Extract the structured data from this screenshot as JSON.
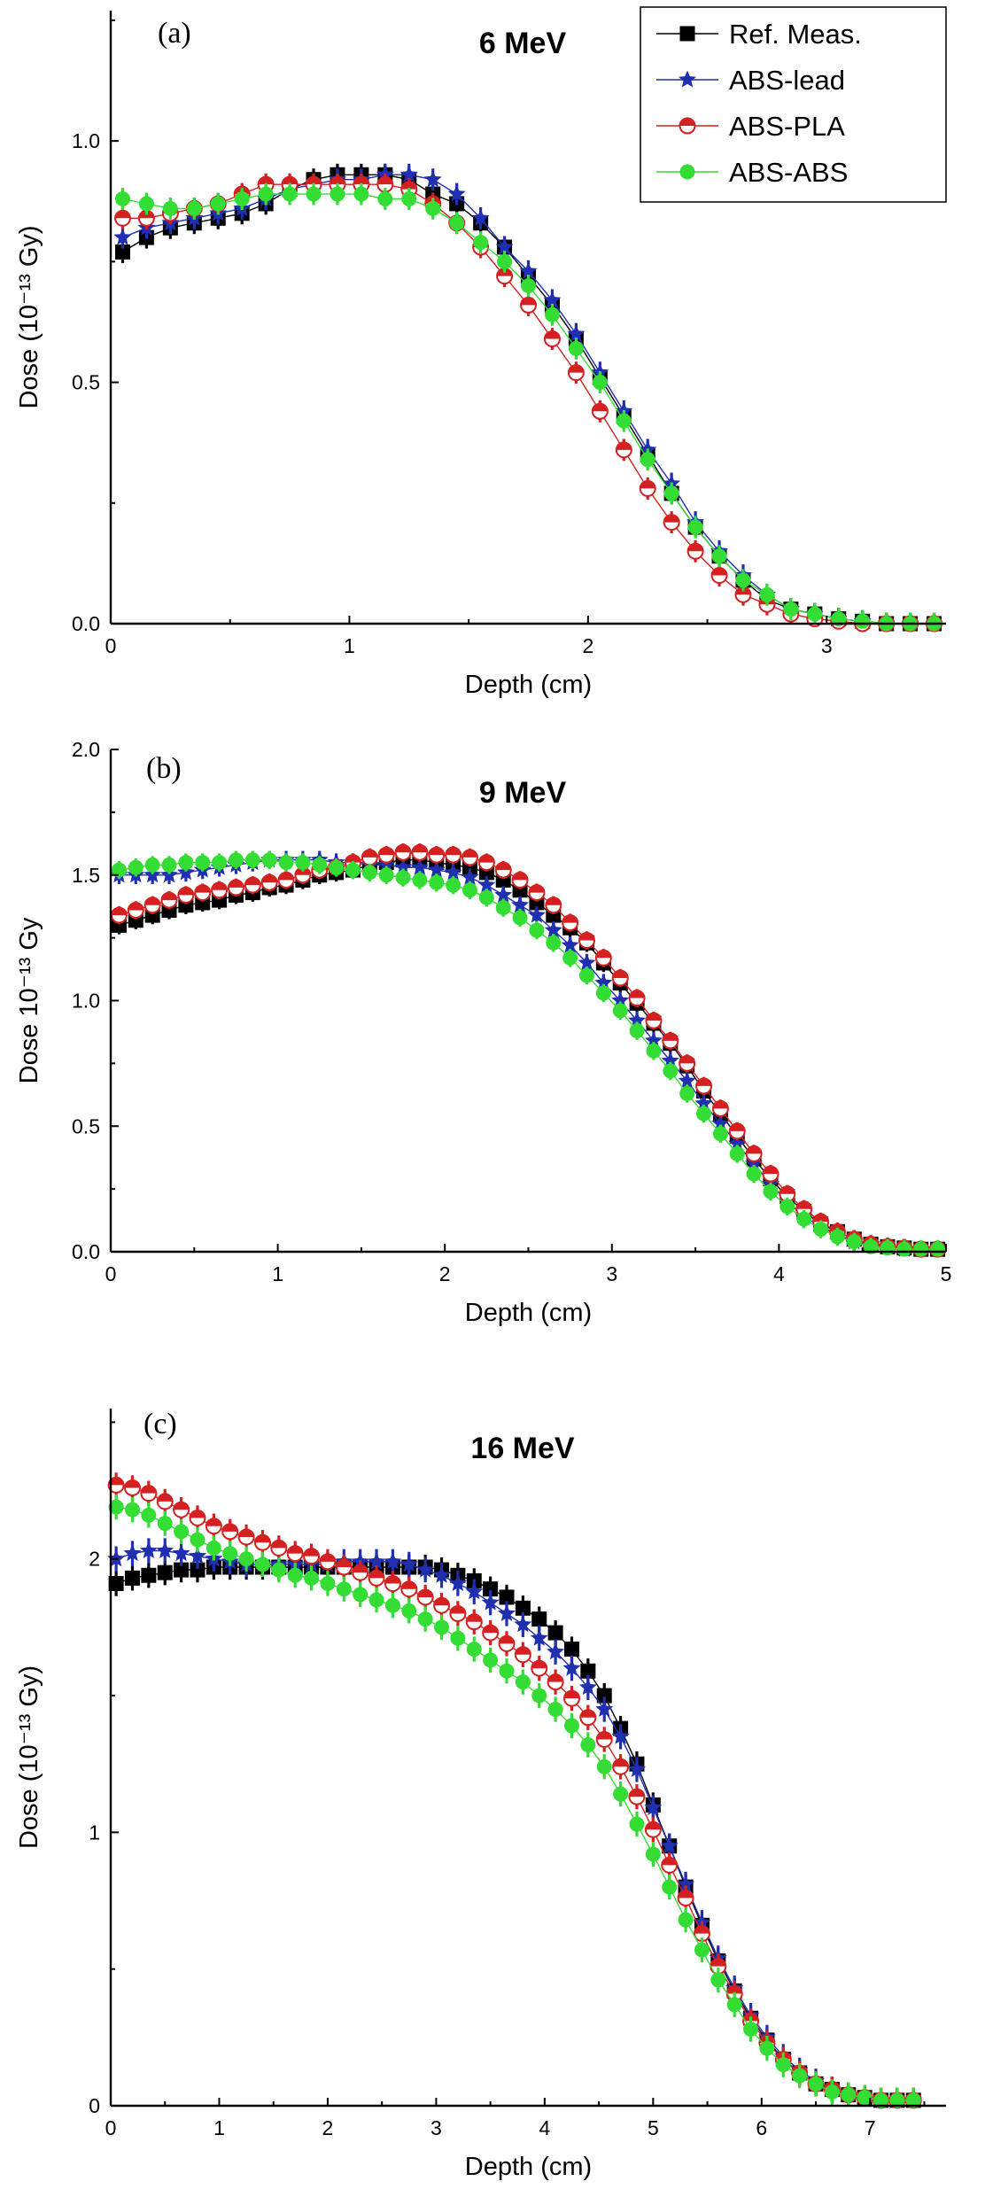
{
  "chart_data": [
    {
      "type": "line",
      "panel_label": "(a)",
      "title": "6 MeV",
      "xlabel": "Depth (cm)",
      "ylabel": "Dose (10⁻¹³ Gy)",
      "xlim": [
        0,
        3.5
      ],
      "ylim": [
        0,
        1.27
      ],
      "xticks": [
        0,
        1,
        2,
        3
      ],
      "xtick_labels": [
        "0",
        "1",
        "2",
        "3"
      ],
      "yticks": [
        0.0,
        0.5,
        1.0
      ],
      "ytick_labels": [
        "0.0",
        "0.5",
        "1.0"
      ],
      "legend": {
        "position": "top-right",
        "entries": [
          "Ref. Meas.",
          "ABS-lead",
          "ABS-PLA",
          "ABS-ABS"
        ]
      },
      "x": [
        0.05,
        0.15,
        0.25,
        0.35,
        0.45,
        0.55,
        0.65,
        0.75,
        0.85,
        0.95,
        1.05,
        1.15,
        1.25,
        1.35,
        1.45,
        1.55,
        1.65,
        1.75,
        1.85,
        1.95,
        2.05,
        2.15,
        2.25,
        2.35,
        2.45,
        2.55,
        2.65,
        2.75,
        2.85,
        2.95,
        3.05,
        3.15,
        3.25,
        3.35,
        3.45
      ],
      "series": [
        {
          "name": "Ref. Meas.",
          "color": "#000000",
          "marker": "square",
          "values": [
            0.77,
            0.8,
            0.82,
            0.83,
            0.84,
            0.85,
            0.87,
            0.9,
            0.92,
            0.93,
            0.93,
            0.93,
            0.92,
            0.89,
            0.87,
            0.83,
            0.78,
            0.72,
            0.66,
            0.59,
            0.51,
            0.43,
            0.35,
            0.27,
            0.2,
            0.14,
            0.09,
            0.05,
            0.03,
            0.02,
            0.01,
            0.005,
            0.0,
            0.0,
            0.0
          ]
        },
        {
          "name": "ABS-lead",
          "color": "#1f2fb0",
          "marker": "star",
          "values": [
            0.8,
            0.82,
            0.83,
            0.84,
            0.85,
            0.86,
            0.88,
            0.9,
            0.91,
            0.92,
            0.92,
            0.93,
            0.93,
            0.92,
            0.89,
            0.84,
            0.78,
            0.73,
            0.67,
            0.6,
            0.52,
            0.44,
            0.36,
            0.29,
            0.21,
            0.15,
            0.1,
            0.06,
            0.03,
            0.02,
            0.01,
            0.005,
            0.0,
            0.0,
            0.0
          ]
        },
        {
          "name": "ABS-PLA",
          "color": "#d42020",
          "marker": "half-circle",
          "values": [
            0.84,
            0.84,
            0.85,
            0.86,
            0.87,
            0.89,
            0.91,
            0.91,
            0.91,
            0.91,
            0.91,
            0.91,
            0.9,
            0.87,
            0.83,
            0.78,
            0.72,
            0.66,
            0.59,
            0.52,
            0.44,
            0.36,
            0.28,
            0.21,
            0.15,
            0.1,
            0.06,
            0.04,
            0.02,
            0.01,
            0.005,
            0.0,
            0.0,
            0.0,
            0.0
          ]
        },
        {
          "name": "ABS-ABS",
          "color": "#33dd33",
          "marker": "circle",
          "values": [
            0.88,
            0.87,
            0.86,
            0.86,
            0.87,
            0.88,
            0.89,
            0.89,
            0.89,
            0.89,
            0.89,
            0.88,
            0.88,
            0.86,
            0.83,
            0.79,
            0.75,
            0.7,
            0.64,
            0.57,
            0.5,
            0.42,
            0.34,
            0.27,
            0.2,
            0.14,
            0.09,
            0.06,
            0.03,
            0.02,
            0.01,
            0.005,
            0.0,
            0.0,
            0.0
          ]
        }
      ]
    },
    {
      "type": "line",
      "panel_label": "(b)",
      "title": "9 MeV",
      "xlabel": "Depth (cm)",
      "ylabel": "Dose 10⁻¹³ Gy",
      "xlim": [
        0,
        5
      ],
      "ylim": [
        0,
        2.0
      ],
      "xticks": [
        0,
        1,
        2,
        3,
        4,
        5
      ],
      "xtick_labels": [
        "0",
        "1",
        "2",
        "3",
        "4",
        "5"
      ],
      "yticks": [
        0.0,
        0.5,
        1.0,
        1.5,
        2.0
      ],
      "ytick_labels": [
        "0.0",
        "0.5",
        "1.0",
        "1.5",
        "2.0"
      ],
      "x": [
        0.05,
        0.15,
        0.25,
        0.35,
        0.45,
        0.55,
        0.65,
        0.75,
        0.85,
        0.95,
        1.05,
        1.15,
        1.25,
        1.35,
        1.45,
        1.55,
        1.65,
        1.75,
        1.85,
        1.95,
        2.05,
        2.15,
        2.25,
        2.35,
        2.45,
        2.55,
        2.65,
        2.75,
        2.85,
        2.95,
        3.05,
        3.15,
        3.25,
        3.35,
        3.45,
        3.55,
        3.65,
        3.75,
        3.85,
        3.95,
        4.05,
        4.15,
        4.25,
        4.35,
        4.45,
        4.55,
        4.65,
        4.75,
        4.85,
        4.95
      ],
      "series": [
        {
          "name": "Ref. Meas.",
          "color": "#000000",
          "marker": "square",
          "values": [
            1.3,
            1.32,
            1.34,
            1.36,
            1.38,
            1.39,
            1.4,
            1.42,
            1.43,
            1.45,
            1.46,
            1.48,
            1.5,
            1.51,
            1.52,
            1.54,
            1.55,
            1.56,
            1.56,
            1.55,
            1.54,
            1.53,
            1.51,
            1.48,
            1.44,
            1.39,
            1.34,
            1.29,
            1.23,
            1.15,
            1.07,
            0.99,
            0.91,
            0.83,
            0.74,
            0.64,
            0.55,
            0.46,
            0.37,
            0.29,
            0.22,
            0.16,
            0.11,
            0.08,
            0.05,
            0.03,
            0.02,
            0.015,
            0.01,
            0.01
          ]
        },
        {
          "name": "ABS-lead",
          "color": "#1f2fb0",
          "marker": "star",
          "values": [
            1.5,
            1.5,
            1.5,
            1.5,
            1.51,
            1.52,
            1.53,
            1.54,
            1.55,
            1.56,
            1.56,
            1.56,
            1.56,
            1.55,
            1.55,
            1.54,
            1.54,
            1.53,
            1.53,
            1.52,
            1.51,
            1.49,
            1.46,
            1.42,
            1.38,
            1.34,
            1.28,
            1.22,
            1.15,
            1.07,
            1.0,
            0.92,
            0.84,
            0.76,
            0.68,
            0.59,
            0.51,
            0.43,
            0.35,
            0.27,
            0.2,
            0.14,
            0.1,
            0.07,
            0.04,
            0.03,
            0.02,
            0.01,
            0.01,
            0.01
          ]
        },
        {
          "name": "ABS-PLA",
          "color": "#d42020",
          "marker": "half-circle",
          "values": [
            1.34,
            1.36,
            1.38,
            1.4,
            1.42,
            1.43,
            1.44,
            1.45,
            1.46,
            1.47,
            1.48,
            1.5,
            1.52,
            1.53,
            1.55,
            1.57,
            1.58,
            1.59,
            1.59,
            1.58,
            1.58,
            1.57,
            1.55,
            1.52,
            1.48,
            1.43,
            1.38,
            1.31,
            1.24,
            1.17,
            1.09,
            1.01,
            0.92,
            0.84,
            0.75,
            0.66,
            0.57,
            0.48,
            0.39,
            0.31,
            0.23,
            0.17,
            0.12,
            0.08,
            0.05,
            0.03,
            0.02,
            0.015,
            0.01,
            0.01
          ]
        },
        {
          "name": "ABS-ABS",
          "color": "#33dd33",
          "marker": "circle",
          "values": [
            1.52,
            1.53,
            1.54,
            1.54,
            1.55,
            1.55,
            1.55,
            1.56,
            1.56,
            1.56,
            1.55,
            1.55,
            1.54,
            1.53,
            1.52,
            1.51,
            1.5,
            1.49,
            1.48,
            1.47,
            1.46,
            1.44,
            1.41,
            1.37,
            1.33,
            1.28,
            1.23,
            1.17,
            1.1,
            1.03,
            0.96,
            0.88,
            0.8,
            0.72,
            0.63,
            0.55,
            0.47,
            0.39,
            0.31,
            0.24,
            0.18,
            0.13,
            0.09,
            0.06,
            0.04,
            0.02,
            0.015,
            0.01,
            0.01,
            0.01
          ]
        }
      ]
    },
    {
      "type": "line",
      "panel_label": "(c)",
      "title": "16 MeV",
      "xlabel": "Depth (cm)",
      "ylabel": "Dose (10⁻¹³ Gy)",
      "xlim": [
        0,
        7.7
      ],
      "ylim": [
        0,
        2.55
      ],
      "xticks": [
        0,
        1,
        2,
        3,
        4,
        5,
        6,
        7
      ],
      "xtick_labels": [
        "0",
        "1",
        "2",
        "3",
        "4",
        "5",
        "6",
        "7"
      ],
      "yticks": [
        0,
        1,
        2
      ],
      "ytick_labels": [
        "0",
        "1",
        "2"
      ],
      "x": [
        0.05,
        0.2,
        0.35,
        0.5,
        0.65,
        0.8,
        0.95,
        1.1,
        1.25,
        1.4,
        1.55,
        1.7,
        1.85,
        2.0,
        2.15,
        2.3,
        2.45,
        2.6,
        2.75,
        2.9,
        3.05,
        3.2,
        3.35,
        3.5,
        3.65,
        3.8,
        3.95,
        4.1,
        4.25,
        4.4,
        4.55,
        4.7,
        4.85,
        5.0,
        5.15,
        5.3,
        5.45,
        5.6,
        5.75,
        5.9,
        6.05,
        6.2,
        6.35,
        6.5,
        6.65,
        6.8,
        6.95,
        7.1,
        7.25,
        7.4
      ],
      "series": [
        {
          "name": "Ref. Meas.",
          "color": "#000000",
          "marker": "square",
          "values": [
            1.91,
            1.93,
            1.94,
            1.95,
            1.96,
            1.96,
            1.97,
            1.97,
            1.97,
            1.97,
            1.97,
            1.97,
            1.97,
            1.97,
            1.97,
            1.97,
            1.97,
            1.97,
            1.97,
            1.97,
            1.96,
            1.94,
            1.92,
            1.89,
            1.86,
            1.82,
            1.78,
            1.73,
            1.67,
            1.59,
            1.5,
            1.38,
            1.25,
            1.1,
            0.95,
            0.8,
            0.66,
            0.53,
            0.42,
            0.32,
            0.24,
            0.17,
            0.12,
            0.08,
            0.06,
            0.04,
            0.03,
            0.02,
            0.02,
            0.02
          ]
        },
        {
          "name": "ABS-lead",
          "color": "#1f2fb0",
          "marker": "star",
          "values": [
            2.0,
            2.02,
            2.03,
            2.03,
            2.02,
            2.01,
            2.0,
            1.99,
            1.98,
            1.98,
            1.98,
            1.98,
            1.98,
            1.98,
            1.99,
            1.99,
            1.99,
            1.99,
            1.98,
            1.96,
            1.94,
            1.91,
            1.88,
            1.84,
            1.8,
            1.76,
            1.71,
            1.66,
            1.6,
            1.53,
            1.45,
            1.35,
            1.23,
            1.09,
            0.95,
            0.81,
            0.67,
            0.54,
            0.43,
            0.33,
            0.25,
            0.18,
            0.13,
            0.09,
            0.06,
            0.04,
            0.03,
            0.02,
            0.02,
            0.02
          ]
        },
        {
          "name": "ABS-PLA",
          "color": "#d42020",
          "marker": "half-circle",
          "values": [
            2.27,
            2.26,
            2.24,
            2.21,
            2.18,
            2.15,
            2.12,
            2.1,
            2.08,
            2.06,
            2.04,
            2.02,
            2.01,
            1.99,
            1.97,
            1.95,
            1.93,
            1.91,
            1.89,
            1.86,
            1.83,
            1.8,
            1.77,
            1.73,
            1.69,
            1.65,
            1.6,
            1.55,
            1.49,
            1.42,
            1.34,
            1.24,
            1.13,
            1.01,
            0.88,
            0.76,
            0.63,
            0.51,
            0.41,
            0.31,
            0.23,
            0.17,
            0.12,
            0.08,
            0.06,
            0.04,
            0.03,
            0.02,
            0.02,
            0.02
          ]
        },
        {
          "name": "ABS-ABS",
          "color": "#33dd33",
          "marker": "circle",
          "values": [
            2.19,
            2.18,
            2.16,
            2.13,
            2.1,
            2.07,
            2.04,
            2.02,
            2.0,
            1.98,
            1.96,
            1.94,
            1.93,
            1.91,
            1.89,
            1.87,
            1.85,
            1.83,
            1.81,
            1.78,
            1.75,
            1.71,
            1.67,
            1.63,
            1.59,
            1.55,
            1.5,
            1.45,
            1.39,
            1.32,
            1.24,
            1.14,
            1.03,
            0.92,
            0.8,
            0.68,
            0.57,
            0.46,
            0.37,
            0.28,
            0.21,
            0.15,
            0.11,
            0.08,
            0.05,
            0.04,
            0.03,
            0.02,
            0.02,
            0.02
          ]
        }
      ]
    }
  ]
}
